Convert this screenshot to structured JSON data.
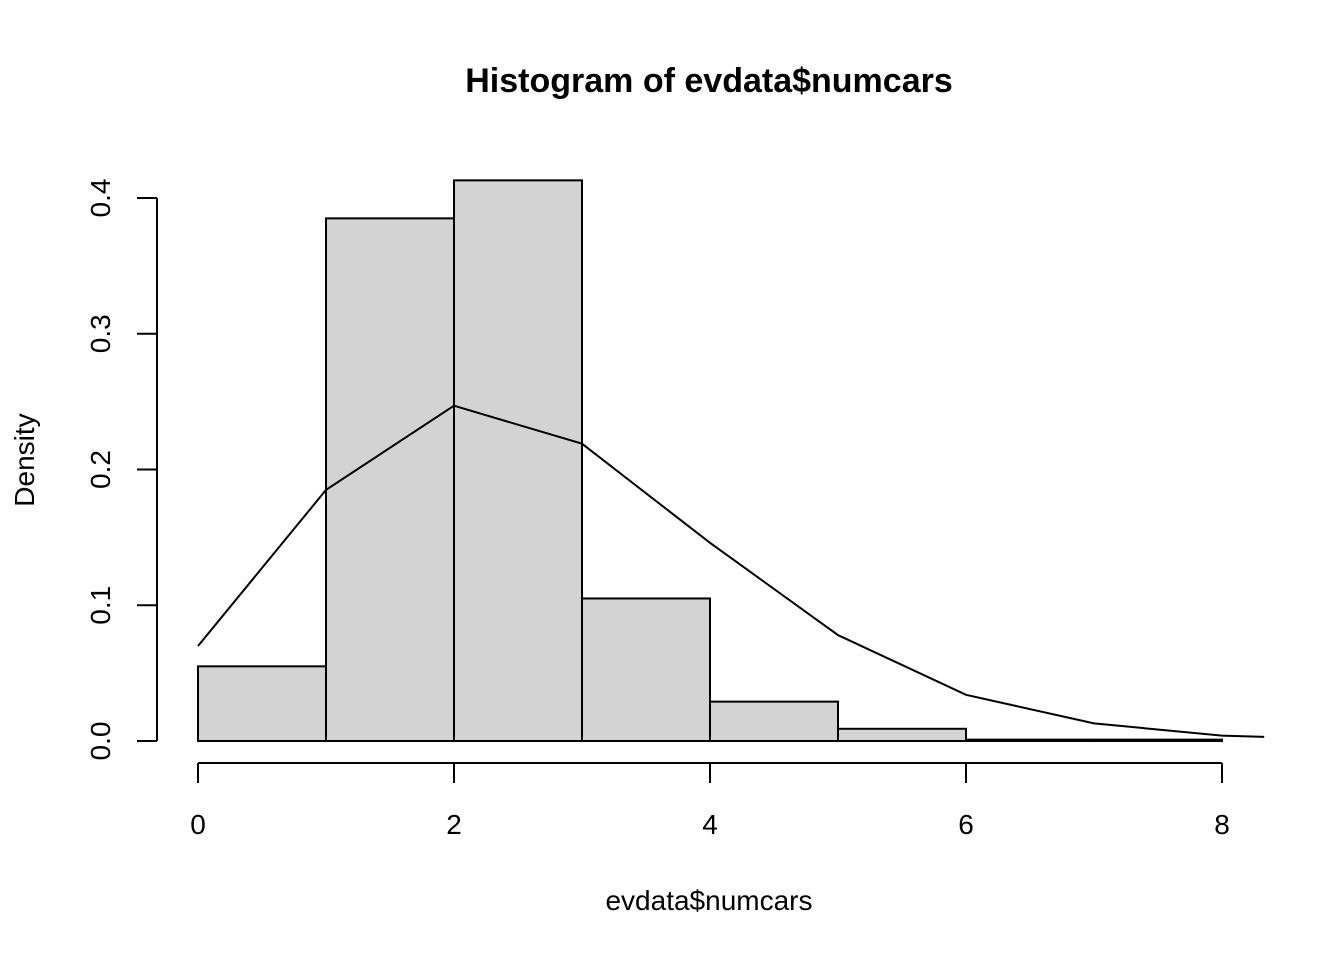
{
  "chart_data": {
    "type": "bar",
    "title": "Histogram of evdata$numcars",
    "xlabel": "evdata$numcars",
    "ylabel": "Density",
    "xlim": [
      0,
      8
    ],
    "ylim": [
      0,
      0.4
    ],
    "x_ticks": [
      0,
      2,
      4,
      6,
      8
    ],
    "y_ticks": [
      0.0,
      0.1,
      0.2,
      0.3,
      0.4
    ],
    "y_tick_labels": [
      "0.0",
      "0.1",
      "0.2",
      "0.3",
      "0.4"
    ],
    "bins": [
      {
        "from": 0,
        "to": 1,
        "density": 0.055
      },
      {
        "from": 1,
        "to": 2,
        "density": 0.385
      },
      {
        "from": 2,
        "to": 3,
        "density": 0.413
      },
      {
        "from": 3,
        "to": 4,
        "density": 0.105
      },
      {
        "from": 4,
        "to": 5,
        "density": 0.029
      },
      {
        "from": 5,
        "to": 6,
        "density": 0.009
      },
      {
        "from": 6,
        "to": 7,
        "density": 0.001
      },
      {
        "from": 7,
        "to": 8,
        "density": 0.001
      }
    ],
    "overlay_line": {
      "x": [
        0,
        1,
        2,
        3,
        4,
        5,
        6,
        7,
        8,
        8.33
      ],
      "y": [
        0.07,
        0.185,
        0.247,
        0.219,
        0.146,
        0.078,
        0.034,
        0.013,
        0.004,
        0.003
      ]
    },
    "grid": false,
    "legend": "none",
    "colors": {
      "bar_fill": "#d3d3d3",
      "stroke": "#000000"
    }
  }
}
